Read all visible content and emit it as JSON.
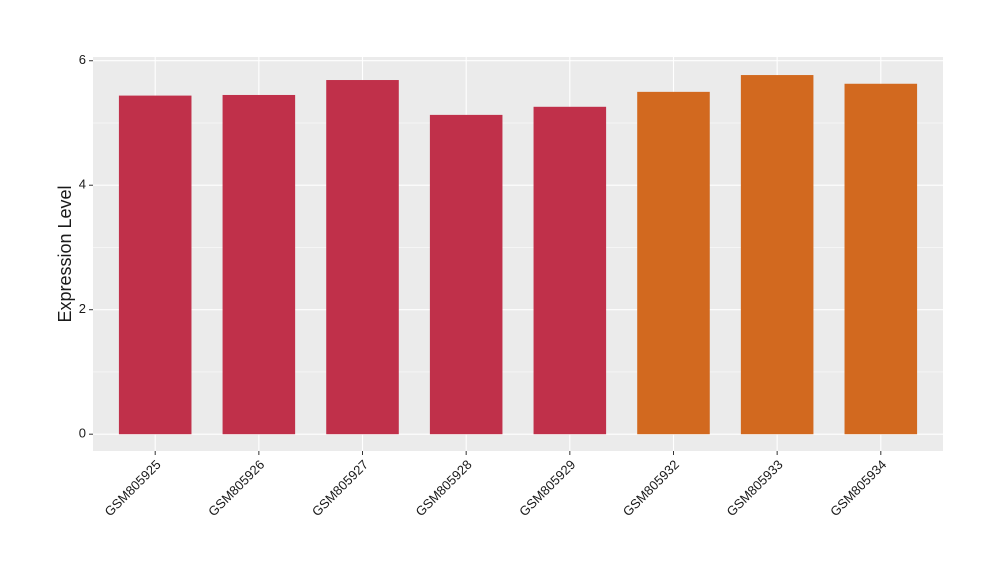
{
  "chart_data": {
    "type": "bar",
    "y_label": "Expression Level",
    "categories": [
      "GSM805925",
      "GSM805926",
      "GSM805927",
      "GSM805928",
      "GSM805929",
      "GSM805932",
      "GSM805933",
      "GSM805934"
    ],
    "values": [
      5.44,
      5.45,
      5.69,
      5.13,
      5.26,
      5.5,
      5.77,
      5.63
    ],
    "colors": [
      "#c0304a",
      "#c0304a",
      "#c0304a",
      "#c0304a",
      "#c0304a",
      "#d2691f",
      "#d2691f",
      "#d2691f"
    ],
    "ylim": [
      -0.27,
      6.06
    ],
    "yticks": [
      0,
      2,
      4,
      6
    ],
    "grid": true
  }
}
